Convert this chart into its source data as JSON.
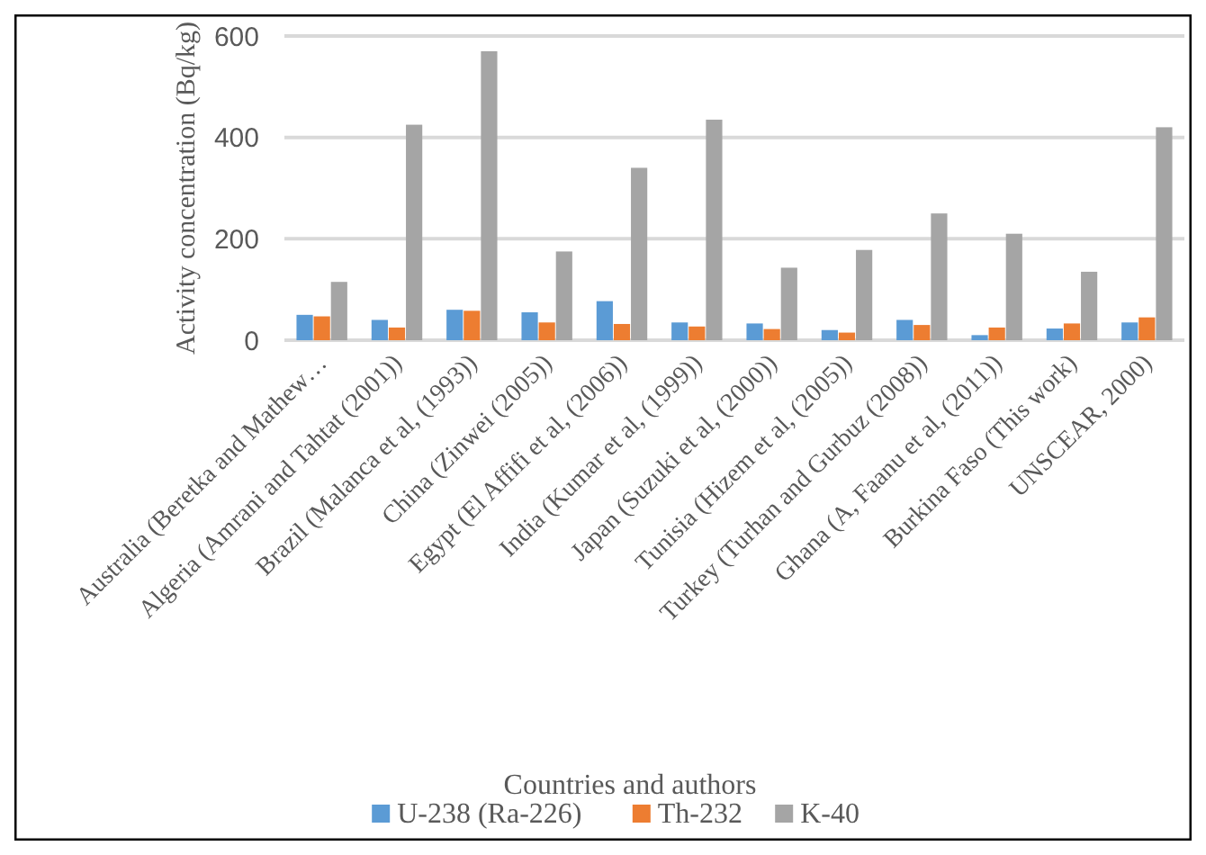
{
  "chart_data": {
    "type": "bar",
    "xlabel": "Countries and authors",
    "ylabel": "Activity concentration (Bq/kg)",
    "categories": [
      "Australia  (Beretka and Mathew…",
      "Algeria (Amrani and Tahtat (2001))",
      "Brazil    (Malanca et al, (1993))",
      "China   (Zinwei (2005))",
      "Egypt  (El Affifi et al, (2006))",
      "India  (Kumar et al, (1999))",
      "Japan  (Suzuki et al, (2000))",
      "Tunisia  (Hizem et al, (2005))",
      "Turkey  (Turhan and Gurbuz (2008))",
      "Ghana   (A, Faanu et al, (2011))",
      "Burkina Faso   (This work)",
      "UNSCEAR, 2000)"
    ],
    "series": [
      {
        "name": "U-238 (Ra-226)",
        "color": "#5b9bd5",
        "values": [
          50,
          40,
          60,
          55,
          77,
          35,
          33,
          20,
          40,
          10,
          23,
          35
        ]
      },
      {
        "name": "Th-232",
        "color": "#ed7d31",
        "values": [
          47,
          25,
          58,
          35,
          32,
          27,
          22,
          15,
          30,
          25,
          33,
          45
        ]
      },
      {
        "name": "K-40",
        "color": "#a5a5a5",
        "values": [
          115,
          425,
          570,
          175,
          340,
          435,
          143,
          178,
          250,
          210,
          135,
          420
        ]
      }
    ],
    "ylim": [
      0,
      600
    ],
    "yticks": [
      0,
      200,
      400,
      600
    ],
    "grid": "y",
    "legend": "bottom"
  }
}
